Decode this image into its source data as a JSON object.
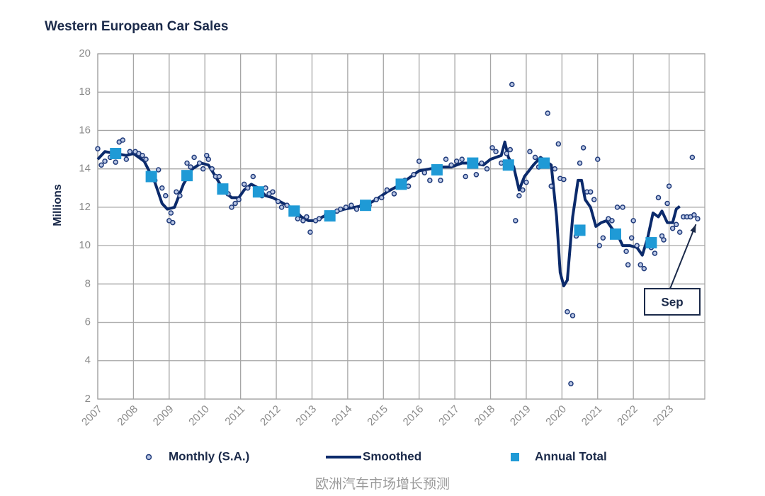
{
  "chart_data": {
    "type": "combo",
    "title": "Western European Car Sales",
    "y_label": "Millions",
    "watermark": "欧洲汽车市场增长预测",
    "xlim": [
      2007,
      2024
    ],
    "xticks": [
      2007,
      2008,
      2009,
      2010,
      2011,
      2012,
      2013,
      2014,
      2015,
      2016,
      2017,
      2018,
      2019,
      2020,
      2021,
      2022,
      2023
    ],
    "ylim": [
      2,
      20
    ],
    "yticks": [
      2,
      4,
      6,
      8,
      10,
      12,
      14,
      16,
      18,
      20
    ],
    "grid": true,
    "legend": "bottom",
    "annotations": [
      {
        "text": "Sep",
        "x": 2023.75,
        "y": 11.4
      }
    ],
    "series": [
      {
        "name": "Monthly (S.A.)",
        "type": "scatter",
        "color": "#1f3a7a",
        "x": [
          2007.0,
          2007.1,
          2007.2,
          2007.35,
          2007.5,
          2007.6,
          2007.7,
          2007.8,
          2007.9,
          2008.05,
          2008.15,
          2008.25,
          2008.35,
          2008.5,
          2008.6,
          2008.7,
          2008.8,
          2008.9,
          2009.0,
          2009.05,
          2009.1,
          2009.2,
          2009.3,
          2009.5,
          2009.6,
          2009.7,
          2009.85,
          2009.95,
          2010.05,
          2010.1,
          2010.2,
          2010.3,
          2010.4,
          2010.55,
          2010.65,
          2010.75,
          2010.85,
          2010.95,
          2011.1,
          2011.2,
          2011.35,
          2011.5,
          2011.6,
          2011.7,
          2011.8,
          2011.9,
          2012.05,
          2012.15,
          2012.3,
          2012.45,
          2012.6,
          2012.75,
          2012.85,
          2012.95,
          2013.1,
          2013.2,
          2013.4,
          2013.55,
          2013.7,
          2013.8,
          2013.95,
          2014.1,
          2014.25,
          2014.4,
          2014.6,
          2014.8,
          2014.95,
          2015.1,
          2015.3,
          2015.45,
          2015.6,
          2015.7,
          2015.85,
          2016.0,
          2016.15,
          2016.3,
          2016.5,
          2016.6,
          2016.75,
          2016.9,
          2017.05,
          2017.2,
          2017.3,
          2017.45,
          2017.6,
          2017.75,
          2017.9,
          2018.05,
          2018.15,
          2018.3,
          2018.45,
          2018.55,
          2018.6,
          2018.7,
          2018.8,
          2018.9,
          2019.0,
          2019.1,
          2019.25,
          2019.35,
          2019.5,
          2019.6,
          2019.7,
          2019.8,
          2019.9,
          2019.95,
          2020.05,
          2020.15,
          2020.25,
          2020.3,
          2020.4,
          2020.5,
          2020.6,
          2020.7,
          2020.8,
          2020.9,
          2021.0,
          2021.05,
          2021.15,
          2021.3,
          2021.4,
          2021.5,
          2021.55,
          2021.7,
          2021.8,
          2021.85,
          2021.95,
          2022.0,
          2022.1,
          2022.2,
          2022.3,
          2022.4,
          2022.5,
          2022.6,
          2022.7,
          2022.8,
          2022.85,
          2022.95,
          2023.0,
          2023.1,
          2023.2,
          2023.3,
          2023.4,
          2023.5,
          2023.6,
          2023.65,
          2023.7,
          2023.8
        ],
        "values": [
          15.05,
          14.2,
          14.4,
          14.6,
          14.35,
          15.4,
          15.5,
          14.5,
          14.9,
          14.9,
          14.8,
          14.7,
          14.5,
          13.7,
          13.4,
          13.95,
          13.0,
          12.6,
          11.3,
          11.7,
          11.2,
          12.8,
          12.6,
          14.3,
          14.1,
          14.6,
          14.3,
          14.0,
          14.7,
          14.5,
          14.0,
          13.6,
          13.6,
          12.9,
          12.7,
          12.0,
          12.2,
          12.4,
          13.2,
          13.0,
          13.6,
          12.9,
          12.6,
          13.0,
          12.7,
          12.8,
          12.3,
          12.0,
          12.1,
          11.9,
          11.4,
          11.3,
          11.5,
          10.7,
          11.3,
          11.4,
          11.6,
          11.7,
          11.8,
          11.9,
          12.0,
          12.1,
          11.9,
          12.1,
          12.1,
          12.4,
          12.5,
          12.9,
          12.7,
          13.1,
          13.4,
          13.1,
          13.7,
          14.4,
          13.8,
          13.4,
          14.0,
          13.4,
          14.5,
          14.2,
          14.4,
          14.5,
          13.6,
          14.2,
          13.7,
          14.3,
          14.0,
          15.1,
          14.9,
          14.3,
          14.8,
          15.0,
          18.4,
          11.3,
          12.6,
          12.9,
          13.3,
          14.9,
          14.6,
          14.1,
          14.3,
          16.9,
          13.1,
          14.0,
          15.3,
          13.5,
          13.45,
          6.55,
          2.8,
          6.35,
          10.5,
          14.3,
          15.1,
          12.8,
          12.8,
          12.4,
          14.5,
          10.0,
          10.4,
          11.4,
          11.3,
          10.7,
          12.0,
          12.0,
          9.7,
          9.0,
          10.4,
          11.3,
          10.0,
          9.0,
          8.8,
          10.0,
          9.9,
          9.6,
          12.5,
          10.5,
          10.3,
          12.2,
          13.1,
          10.9,
          11.1,
          10.7,
          11.5,
          11.5,
          11.5,
          14.6,
          11.6,
          11.4
        ]
      },
      {
        "name": "Smoothed",
        "type": "line",
        "color": "#0b2a6b",
        "x": [
          2007.0,
          2007.2,
          2007.5,
          2007.8,
          2008.0,
          2008.3,
          2008.6,
          2008.8,
          2008.95,
          2009.15,
          2009.4,
          2009.65,
          2009.9,
          2010.1,
          2010.3,
          2010.55,
          2010.75,
          2010.95,
          2011.1,
          2011.3,
          2011.5,
          2011.7,
          2011.9,
          2012.2,
          2012.5,
          2012.7,
          2012.9,
          2013.1,
          2013.3,
          2013.6,
          2013.9,
          2014.2,
          2014.5,
          2014.8,
          2015.1,
          2015.4,
          2015.7,
          2016.0,
          2016.3,
          2016.6,
          2016.9,
          2017.2,
          2017.5,
          2017.8,
          2018.0,
          2018.3,
          2018.4,
          2018.5,
          2018.65,
          2018.8,
          2018.95,
          2019.2,
          2019.4,
          2019.55,
          2019.7,
          2019.85,
          2019.95,
          2020.05,
          2020.15,
          2020.3,
          2020.45,
          2020.55,
          2020.65,
          2020.8,
          2020.95,
          2021.1,
          2021.25,
          2021.4,
          2021.55,
          2021.7,
          2021.9,
          2022.1,
          2022.25,
          2022.4,
          2022.55,
          2022.7,
          2022.8,
          2022.95,
          2023.1,
          2023.2,
          2023.3
        ],
        "values": [
          14.5,
          14.9,
          14.8,
          14.7,
          14.8,
          14.4,
          13.3,
          12.2,
          11.9,
          12.0,
          13.2,
          14.0,
          14.3,
          14.2,
          13.6,
          12.8,
          12.5,
          12.5,
          12.9,
          13.2,
          13.0,
          12.6,
          12.5,
          12.2,
          11.9,
          11.5,
          11.3,
          11.3,
          11.5,
          11.7,
          11.9,
          12.0,
          12.1,
          12.4,
          12.8,
          13.1,
          13.5,
          13.9,
          14.0,
          14.1,
          14.1,
          14.3,
          14.3,
          14.2,
          14.5,
          14.7,
          15.4,
          14.6,
          14.1,
          12.9,
          13.6,
          14.2,
          14.6,
          14.4,
          14.2,
          11.5,
          8.6,
          7.9,
          8.2,
          11.5,
          13.4,
          13.4,
          12.4,
          12.0,
          11.0,
          11.2,
          11.3,
          10.9,
          10.6,
          10.0,
          10.0,
          9.9,
          9.5,
          10.4,
          11.7,
          11.5,
          11.8,
          11.2,
          11.2,
          11.9,
          12.05
        ]
      },
      {
        "name": "Annual Total",
        "type": "square",
        "color": "#1f9ad6",
        "x": [
          2007.5,
          2008.5,
          2009.5,
          2010.5,
          2011.5,
          2012.5,
          2013.5,
          2014.5,
          2015.5,
          2016.5,
          2017.5,
          2018.5,
          2019.5,
          2020.5,
          2021.5,
          2022.5
        ],
        "values": [
          14.8,
          13.6,
          13.65,
          12.95,
          12.8,
          11.8,
          11.55,
          12.1,
          13.2,
          13.95,
          14.3,
          14.2,
          14.3,
          10.8,
          10.6,
          10.15
        ]
      }
    ]
  }
}
